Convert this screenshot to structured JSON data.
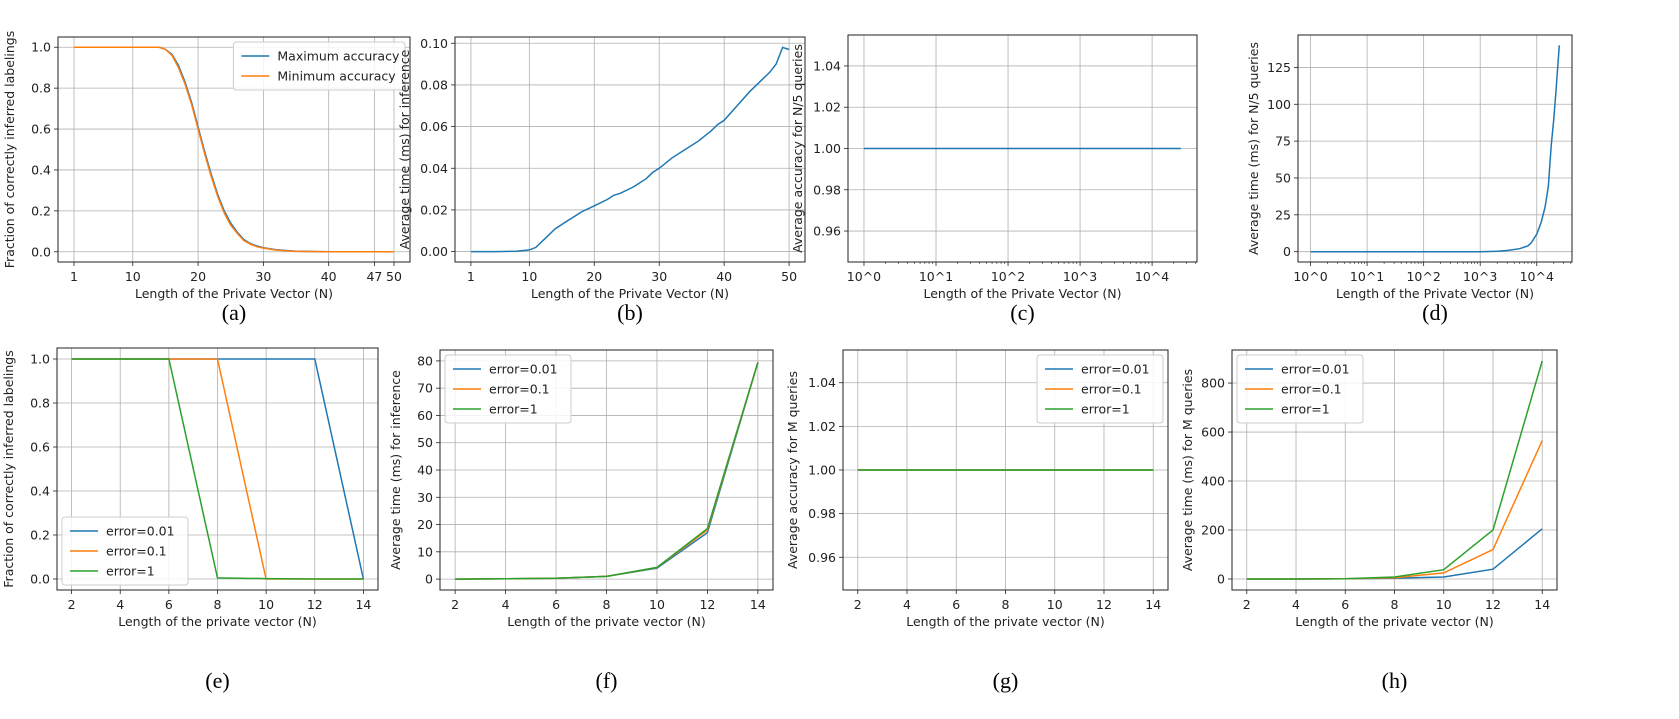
{
  "colors": {
    "blue": "#1f77b4",
    "orange": "#ff7f0e",
    "green": "#2ca02c",
    "grid": "#b0b0b0"
  },
  "chart_data": [
    {
      "id": "a",
      "caption": "(a)",
      "type": "line",
      "xlabel": "Length of the Private Vector (N)",
      "ylabel": "Fraction of correctly inferred labelings",
      "xscale": "linear",
      "xlim": [
        -1.45,
        52.45
      ],
      "ylim": [
        -0.05,
        1.05
      ],
      "xticks": [
        1,
        10,
        20,
        30,
        40,
        47,
        50
      ],
      "xtick_labels": [
        "1",
        "10",
        "20",
        "30",
        "40",
        "47",
        "50"
      ],
      "yticks": [
        0,
        0.2,
        0.4,
        0.6,
        0.8,
        1.0
      ],
      "ytick_labels": [
        "0.0",
        "0.2",
        "0.4",
        "0.6",
        "0.8",
        "1.0"
      ],
      "grid": true,
      "legend": "upper-right",
      "series": [
        {
          "name": "Maximum accuracy",
          "color": "#1f77b4",
          "x": [
            1,
            5,
            10,
            14,
            15,
            16,
            17,
            18,
            19,
            20,
            21,
            22,
            23,
            24,
            25,
            26,
            27,
            28,
            29,
            30,
            32,
            35,
            40,
            45,
            50
          ],
          "y": [
            1,
            1,
            1,
            1,
            0.99,
            0.965,
            0.91,
            0.83,
            0.73,
            0.61,
            0.49,
            0.38,
            0.28,
            0.2,
            0.14,
            0.095,
            0.06,
            0.04,
            0.028,
            0.02,
            0.01,
            0.003,
            0,
            0,
            0
          ]
        },
        {
          "name": "Minimum accuracy",
          "color": "#ff7f0e",
          "x": [
            1,
            5,
            10,
            14,
            15,
            16,
            17,
            18,
            19,
            20,
            21,
            22,
            23,
            24,
            25,
            26,
            27,
            28,
            29,
            30,
            32,
            35,
            40,
            45,
            50
          ],
          "y": [
            1,
            1,
            1,
            1,
            0.99,
            0.96,
            0.9,
            0.82,
            0.72,
            0.6,
            0.48,
            0.37,
            0.27,
            0.19,
            0.13,
            0.09,
            0.055,
            0.037,
            0.025,
            0.018,
            0.008,
            0.002,
            0,
            0,
            0
          ]
        }
      ]
    },
    {
      "id": "b",
      "caption": "(b)",
      "type": "line",
      "xlabel": "Length of the Private Vector (N)",
      "ylabel": "Average time (ms) for inference",
      "xscale": "linear",
      "xlim": [
        -1.45,
        52.45
      ],
      "ylim": [
        -0.005,
        0.103
      ],
      "xticks": [
        1,
        10,
        20,
        30,
        40,
        50
      ],
      "xtick_labels": [
        "1",
        "10",
        "20",
        "30",
        "40",
        "50"
      ],
      "yticks": [
        0,
        0.02,
        0.04,
        0.06,
        0.08,
        0.1
      ],
      "ytick_labels": [
        "0.00",
        "0.02",
        "0.04",
        "0.06",
        "0.08",
        "0.10"
      ],
      "grid": true,
      "legend": "none",
      "series": [
        {
          "color": "#1f77b4",
          "x": [
            1,
            5,
            8,
            10,
            11,
            12,
            13,
            14,
            15,
            16,
            17,
            18,
            20,
            22,
            23,
            24,
            26,
            28,
            29,
            30,
            32,
            34,
            36,
            38,
            39,
            40,
            42,
            44,
            46,
            47,
            48,
            49,
            50
          ],
          "y": [
            0,
            0,
            0.0002,
            0.0008,
            0.002,
            0.005,
            0.008,
            0.011,
            0.013,
            0.015,
            0.017,
            0.019,
            0.022,
            0.025,
            0.027,
            0.028,
            0.031,
            0.035,
            0.038,
            0.04,
            0.045,
            0.049,
            0.053,
            0.058,
            0.061,
            0.063,
            0.07,
            0.077,
            0.083,
            0.086,
            0.09,
            0.098,
            0.097
          ]
        }
      ]
    },
    {
      "id": "c",
      "caption": "(c)",
      "type": "line",
      "xlabel": "Length of the Private Vector (N)",
      "ylabel": "Average accuracy for N/5 queries",
      "xscale": "log",
      "xlim": [
        0.6,
        42000
      ],
      "ylim": [
        0.945,
        1.055
      ],
      "xticks": [
        1,
        10,
        100,
        1000,
        10000
      ],
      "xtick_labels": [
        "10^0",
        "10^1",
        "10^2",
        "10^3",
        "10^4"
      ],
      "yticks": [
        0.96,
        0.98,
        1.0,
        1.02,
        1.04
      ],
      "ytick_labels": [
        "0.96",
        "0.98",
        "1.00",
        "1.02",
        "1.04"
      ],
      "grid": true,
      "legend": "none",
      "series": [
        {
          "color": "#1f77b4",
          "x": [
            1,
            25000
          ],
          "y": [
            1.0,
            1.0
          ]
        }
      ]
    },
    {
      "id": "d",
      "caption": "(d)",
      "type": "line",
      "xlabel": "Length of the Private Vector (N)",
      "ylabel": "Average time (ms) for N/5 queries",
      "xscale": "log",
      "xlim": [
        0.6,
        42000
      ],
      "ylim": [
        -7,
        147
      ],
      "xticks": [
        1,
        10,
        100,
        1000,
        10000
      ],
      "xtick_labels": [
        "10^0",
        "10^1",
        "10^2",
        "10^3",
        "10^4"
      ],
      "yticks": [
        0,
        25,
        50,
        75,
        100,
        125
      ],
      "ytick_labels": [
        "0",
        "25",
        "50",
        "75",
        "100",
        "125"
      ],
      "grid": true,
      "legend": "none",
      "series": [
        {
          "color": "#1f77b4",
          "x": [
            1,
            10,
            100,
            1000,
            2000,
            3000,
            5000,
            7000,
            8000,
            10000,
            12000,
            14000,
            16000,
            18000,
            20000,
            22000,
            25000
          ],
          "y": [
            0,
            0,
            0,
            0,
            0.3,
            0.8,
            2,
            4,
            6,
            12,
            20,
            30,
            44,
            72,
            90,
            110,
            140
          ]
        }
      ]
    },
    {
      "id": "e",
      "caption": "(e)",
      "type": "line",
      "xlabel": "Length of the private vector (N)",
      "ylabel": "Fraction of correctly inferred labelings",
      "xscale": "linear",
      "xlim": [
        1.4,
        14.6
      ],
      "ylim": [
        -0.05,
        1.05
      ],
      "xticks": [
        2,
        4,
        6,
        8,
        10,
        12,
        14
      ],
      "xtick_labels": [
        "2",
        "4",
        "6",
        "8",
        "10",
        "12",
        "14"
      ],
      "yticks": [
        0,
        0.2,
        0.4,
        0.6,
        0.8,
        1.0
      ],
      "ytick_labels": [
        "0.0",
        "0.2",
        "0.4",
        "0.6",
        "0.8",
        "1.0"
      ],
      "grid": true,
      "legend": "lower-left",
      "series": [
        {
          "name": "error=0.01",
          "color": "#1f77b4",
          "x": [
            2,
            4,
            6,
            8,
            10,
            12,
            14
          ],
          "y": [
            1,
            1,
            1,
            1,
            1,
            1,
            0
          ]
        },
        {
          "name": "error=0.1",
          "color": "#ff7f0e",
          "x": [
            2,
            4,
            6,
            8,
            10,
            12,
            14
          ],
          "y": [
            1,
            1,
            1,
            1,
            0,
            0,
            0
          ]
        },
        {
          "name": "error=1",
          "color": "#2ca02c",
          "x": [
            2,
            4,
            6,
            8,
            10,
            12,
            14
          ],
          "y": [
            1,
            1,
            1,
            0.005,
            0.002,
            0,
            0
          ]
        }
      ]
    },
    {
      "id": "f",
      "caption": "(f)",
      "type": "line",
      "xlabel": "Length of the private vector (N)",
      "ylabel": "Average time (ms) for inference",
      "xscale": "linear",
      "xlim": [
        1.4,
        14.6
      ],
      "ylim": [
        -4,
        84
      ],
      "xticks": [
        2,
        4,
        6,
        8,
        10,
        12,
        14
      ],
      "xtick_labels": [
        "2",
        "4",
        "6",
        "8",
        "10",
        "12",
        "14"
      ],
      "yticks": [
        0,
        10,
        20,
        30,
        40,
        50,
        60,
        70,
        80
      ],
      "ytick_labels": [
        "0",
        "10",
        "20",
        "30",
        "40",
        "50",
        "60",
        "70",
        "80"
      ],
      "grid": true,
      "legend": "upper-left",
      "series": [
        {
          "name": "error=0.01",
          "color": "#1f77b4",
          "x": [
            2,
            4,
            6,
            8,
            10,
            12,
            14
          ],
          "y": [
            0,
            0.1,
            0.3,
            1,
            4,
            17,
            79.5
          ]
        },
        {
          "name": "error=0.1",
          "color": "#ff7f0e",
          "x": [
            2,
            4,
            6,
            8,
            10,
            12,
            14
          ],
          "y": [
            0,
            0.1,
            0.3,
            1,
            4.2,
            18,
            79.5
          ]
        },
        {
          "name": "error=1",
          "color": "#2ca02c",
          "x": [
            2,
            4,
            6,
            8,
            10,
            12,
            14
          ],
          "y": [
            0,
            0.1,
            0.3,
            1,
            4.3,
            18.5,
            79.5
          ]
        }
      ]
    },
    {
      "id": "g",
      "caption": "(g)",
      "type": "line",
      "xlabel": "Length of the private vector (N)",
      "ylabel": "Average accuracy for M queries",
      "xscale": "linear",
      "xlim": [
        1.4,
        14.6
      ],
      "ylim": [
        0.945,
        1.055
      ],
      "xticks": [
        2,
        4,
        6,
        8,
        10,
        12,
        14
      ],
      "xtick_labels": [
        "2",
        "4",
        "6",
        "8",
        "10",
        "12",
        "14"
      ],
      "yticks": [
        0.96,
        0.98,
        1.0,
        1.02,
        1.04
      ],
      "ytick_labels": [
        "0.96",
        "0.98",
        "1.00",
        "1.02",
        "1.04"
      ],
      "grid": true,
      "legend": "upper-right",
      "series": [
        {
          "name": "error=0.01",
          "color": "#1f77b4",
          "x": [
            2,
            4,
            6,
            8,
            10,
            12,
            14
          ],
          "y": [
            1,
            1,
            1,
            1,
            1,
            1,
            1
          ]
        },
        {
          "name": "error=0.1",
          "color": "#ff7f0e",
          "x": [
            2,
            4,
            6,
            8,
            10,
            12,
            14
          ],
          "y": [
            1,
            1,
            1,
            1,
            1,
            1,
            1
          ]
        },
        {
          "name": "error=1",
          "color": "#2ca02c",
          "x": [
            2,
            4,
            6,
            8,
            10,
            12,
            14
          ],
          "y": [
            1,
            1,
            1,
            1,
            1,
            1,
            1
          ]
        }
      ]
    },
    {
      "id": "h",
      "caption": "(h)",
      "type": "line",
      "xlabel": "Length of the private vector (N)",
      "ylabel": "Average time (ms) for M queries",
      "xscale": "linear",
      "xlim": [
        1.4,
        14.6
      ],
      "ylim": [
        -45,
        935
      ],
      "xticks": [
        2,
        4,
        6,
        8,
        10,
        12,
        14
      ],
      "xtick_labels": [
        "2",
        "4",
        "6",
        "8",
        "10",
        "12",
        "14"
      ],
      "yticks": [
        0,
        200,
        400,
        600,
        800
      ],
      "ytick_labels": [
        "0",
        "200",
        "400",
        "600",
        "800"
      ],
      "grid": true,
      "legend": "upper-left",
      "series": [
        {
          "name": "error=0.01",
          "color": "#1f77b4",
          "x": [
            2,
            4,
            6,
            8,
            10,
            12,
            14
          ],
          "y": [
            0,
            0,
            1,
            3,
            8,
            40,
            205
          ]
        },
        {
          "name": "error=0.1",
          "color": "#ff7f0e",
          "x": [
            2,
            4,
            6,
            8,
            10,
            12,
            14
          ],
          "y": [
            0,
            0,
            1,
            5,
            25,
            120,
            565
          ]
        },
        {
          "name": "error=1",
          "color": "#2ca02c",
          "x": [
            2,
            4,
            6,
            8,
            10,
            12,
            14
          ],
          "y": [
            0,
            0,
            1,
            8,
            38,
            200,
            890
          ]
        }
      ]
    }
  ]
}
